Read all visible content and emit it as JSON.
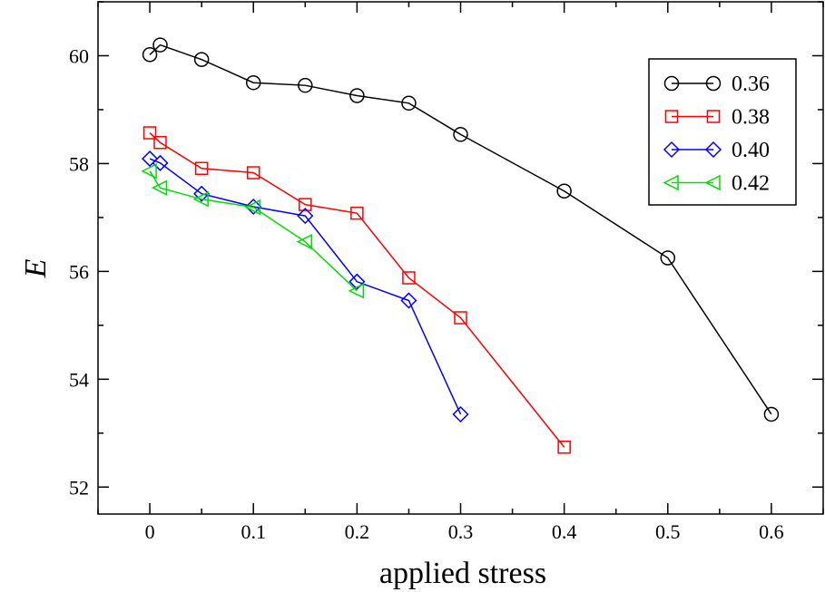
{
  "chart_data": {
    "type": "line",
    "title": "",
    "xlabel": "applied stress",
    "ylabel": "E",
    "xlim": [
      -0.05,
      0.65
    ],
    "ylim": [
      51.5,
      61
    ],
    "x_ticks": [
      0,
      0.1,
      0.2,
      0.3,
      0.4,
      0.5,
      0.6
    ],
    "x_tick_labels": [
      "0",
      "0.1",
      "0.2",
      "0.3",
      "0.4",
      "0.5",
      "0.6"
    ],
    "y_ticks": [
      52,
      54,
      56,
      58,
      60
    ],
    "y_tick_labels": [
      "52",
      "54",
      "56",
      "58",
      "60"
    ],
    "grid": false,
    "legend_position": "top-right",
    "series": [
      {
        "name": "0.36",
        "color": "#000000",
        "marker": "circle",
        "x": [
          0,
          0.01,
          0.05,
          0.1,
          0.15,
          0.2,
          0.25,
          0.3,
          0.4,
          0.5,
          0.6
        ],
        "y": [
          60.02,
          60.2,
          59.93,
          59.5,
          59.45,
          59.26,
          59.12,
          58.54,
          57.49,
          56.25,
          53.35
        ]
      },
      {
        "name": "0.38",
        "color": "#ff0000",
        "marker": "square",
        "x": [
          0,
          0.01,
          0.05,
          0.1,
          0.15,
          0.2,
          0.25,
          0.3,
          0.4
        ],
        "y": [
          58.57,
          58.39,
          57.91,
          57.83,
          57.24,
          57.08,
          55.88,
          55.14,
          52.74
        ]
      },
      {
        "name": "0.40",
        "color": "#0000ff",
        "marker": "diamond",
        "x": [
          0,
          0.01,
          0.05,
          0.1,
          0.15,
          0.2,
          0.25,
          0.3
        ],
        "y": [
          58.09,
          58.01,
          57.44,
          57.2,
          57.03,
          55.81,
          55.46,
          53.35
        ]
      },
      {
        "name": "0.42",
        "color": "#00dd00",
        "marker": "triangle-left",
        "x": [
          0,
          0.01,
          0.05,
          0.1,
          0.15,
          0.2
        ],
        "y": [
          57.86,
          57.55,
          57.34,
          57.19,
          56.55,
          55.64
        ]
      }
    ]
  }
}
